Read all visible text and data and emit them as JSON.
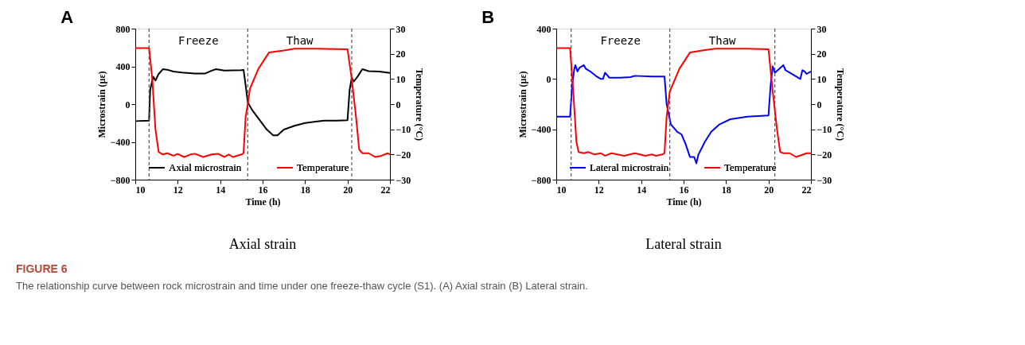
{
  "chart_data": [
    {
      "type": "line",
      "title": "A",
      "xlabel": "Time (h)",
      "ylabel": "Microstrain (με)",
      "y2label": "Temperature (°C)",
      "xlim": [
        10,
        22
      ],
      "xticks": [
        10,
        12,
        14,
        16,
        18,
        20,
        22
      ],
      "ylim": [
        -800,
        800
      ],
      "yticks": [
        -800,
        -400,
        0,
        400,
        800
      ],
      "y2lim": [
        -30,
        30
      ],
      "y2ticks": [
        -30,
        -20,
        -10,
        0,
        10,
        20,
        30
      ],
      "grid": false,
      "legend": "bottom",
      "marker": "none",
      "line_style": "solid",
      "series": [
        {
          "name": "Axial microstrain",
          "color": "#000000",
          "x": [
            10,
            10.65,
            10.7,
            10.8,
            10.85,
            10.95,
            11.1,
            11.3,
            11.5,
            11.8,
            12.2,
            12.8,
            13.3,
            13.6,
            13.8,
            14.2,
            15.0,
            15.1,
            15.2,
            15.3,
            15.5,
            15.8,
            16.2,
            16.5,
            16.7,
            17.0,
            17.5,
            18,
            18.5,
            18.9,
            19.5,
            20.0,
            20.1,
            20.2,
            20.3,
            20.5,
            20.7,
            21.0,
            21.5,
            22
          ],
          "values": [
            -180,
            -175,
            150,
            250,
            290,
            250,
            320,
            370,
            365,
            345,
            335,
            325,
            325,
            355,
            370,
            355,
            360,
            365,
            200,
            20,
            -60,
            -150,
            -270,
            -330,
            -330,
            -270,
            -230,
            -200,
            -185,
            -175,
            -175,
            -170,
            150,
            280,
            240,
            300,
            370,
            350,
            345,
            330
          ]
        },
        {
          "name": "Temperature",
          "color": "#ff0000",
          "axis": "y2",
          "x": [
            10,
            10.65,
            10.8,
            10.95,
            11.1,
            11.3,
            11.5,
            11.8,
            12.0,
            12.3,
            12.6,
            12.8,
            13.2,
            13.6,
            13.9,
            14.2,
            14.4,
            14.6,
            15.0,
            15.1,
            15.2,
            15.3,
            15.4,
            15.8,
            16.3,
            17.0,
            17.5,
            18.5,
            20.0,
            20.2,
            20.4,
            20.55,
            20.7,
            21.0,
            21.3,
            21.6,
            21.9,
            22
          ],
          "values": [
            22.3,
            22.3,
            10,
            -10,
            -19,
            -20,
            -19.5,
            -20.5,
            -19.8,
            -21,
            -20,
            -19.7,
            -21,
            -20,
            -19.7,
            -21,
            -20,
            -21,
            -20,
            -19.5,
            -5,
            0,
            6,
            14,
            20.5,
            21.3,
            22,
            22,
            21.8,
            10,
            -5,
            -18,
            -19.5,
            -19.5,
            -21,
            -20.5,
            -19.5,
            -20
          ]
        }
      ],
      "ref_lines": [
        {
          "axis": "x",
          "value": 10.65,
          "color": "#555555",
          "line_style": "dashed"
        },
        {
          "axis": "x",
          "value": 15.3,
          "color": "#555555",
          "line_style": "dashed"
        },
        {
          "axis": "x",
          "value": 20.2,
          "color": "#555555",
          "line_style": "dashed"
        }
      ],
      "annotations": [
        "Freeze",
        "Thaw",
        "Axial strain",
        "FIGURE 6",
        "The relationship curve between rock microstrain and time under one freeze-thaw cycle (S1). (A) Axial strain (B) Lateral strain."
      ]
    },
    {
      "type": "line",
      "title": "B",
      "xlabel": "Time (h)",
      "ylabel": "Microstrain (με)",
      "y2label": "Temperature (°C)",
      "xlim": [
        10,
        22
      ],
      "xticks": [
        10,
        12,
        14,
        16,
        18,
        20,
        22
      ],
      "ylim": [
        -800,
        400
      ],
      "yticks": [
        -800,
        -400,
        0,
        400
      ],
      "y2lim": [
        -30,
        30
      ],
      "y2ticks": [
        -30,
        -20,
        -10,
        0,
        10,
        20,
        30
      ],
      "grid": false,
      "legend": "bottom",
      "marker": "none",
      "line_style": "solid",
      "series": [
        {
          "name": "Lateral microstrain",
          "color": "#0000ff",
          "x": [
            10,
            10.65,
            10.75,
            10.85,
            10.9,
            11.0,
            11.1,
            11.3,
            11.4,
            11.6,
            11.9,
            12.1,
            12.2,
            12.3,
            12.5,
            13.0,
            13.5,
            13.7,
            14.5,
            15.1,
            15.2,
            15.4,
            15.7,
            15.9,
            16.1,
            16.3,
            16.5,
            16.6,
            16.7,
            17.0,
            17.3,
            17.7,
            18.2,
            19.0,
            20.0,
            20.1,
            20.2,
            20.3,
            20.5,
            20.7,
            20.8,
            21.0,
            21.3,
            21.5,
            21.6,
            21.7,
            21.8,
            22
          ],
          "values": [
            -300,
            -300,
            -50,
            80,
            110,
            60,
            90,
            110,
            80,
            60,
            20,
            0,
            0,
            50,
            10,
            10,
            15,
            25,
            20,
            20,
            -200,
            -360,
            -420,
            -440,
            -520,
            -620,
            -620,
            -670,
            -600,
            -500,
            -420,
            -360,
            -320,
            -300,
            -290,
            -50,
            100,
            50,
            80,
            110,
            70,
            50,
            20,
            0,
            70,
            60,
            40,
            60
          ]
        },
        {
          "name": "Temperature",
          "color": "#ff0000",
          "axis": "y2",
          "x": [
            10,
            10.65,
            10.8,
            10.95,
            11.05,
            11.3,
            11.5,
            11.8,
            12.1,
            12.3,
            12.6,
            13.2,
            13.7,
            14.2,
            14.5,
            14.7,
            15.0,
            15.1,
            15.2,
            15.35,
            15.8,
            16.3,
            17.0,
            17.5,
            19.0,
            20.0,
            20.2,
            20.4,
            20.55,
            20.7,
            21.0,
            21.3,
            21.8,
            22
          ],
          "values": [
            22.3,
            22.3,
            5,
            -15,
            -19,
            -19.5,
            -19,
            -20,
            -19.5,
            -20.5,
            -19.5,
            -20.5,
            -19.5,
            -20.5,
            -20,
            -20.5,
            -20,
            -19.5,
            -5,
            5,
            14,
            20.5,
            21.5,
            22,
            22,
            21.8,
            5,
            -10,
            -19,
            -19.5,
            -19.5,
            -21,
            -19.5,
            -19.5
          ]
        }
      ],
      "ref_lines": [
        {
          "axis": "x",
          "value": 10.7,
          "color": "#555555",
          "line_style": "dashed"
        },
        {
          "axis": "x",
          "value": 15.35,
          "color": "#555555",
          "line_style": "dashed"
        },
        {
          "axis": "x",
          "value": 20.3,
          "color": "#555555",
          "line_style": "dashed"
        }
      ],
      "annotations": [
        "Freeze",
        "Thaw",
        "Lateral strain"
      ]
    }
  ]
}
